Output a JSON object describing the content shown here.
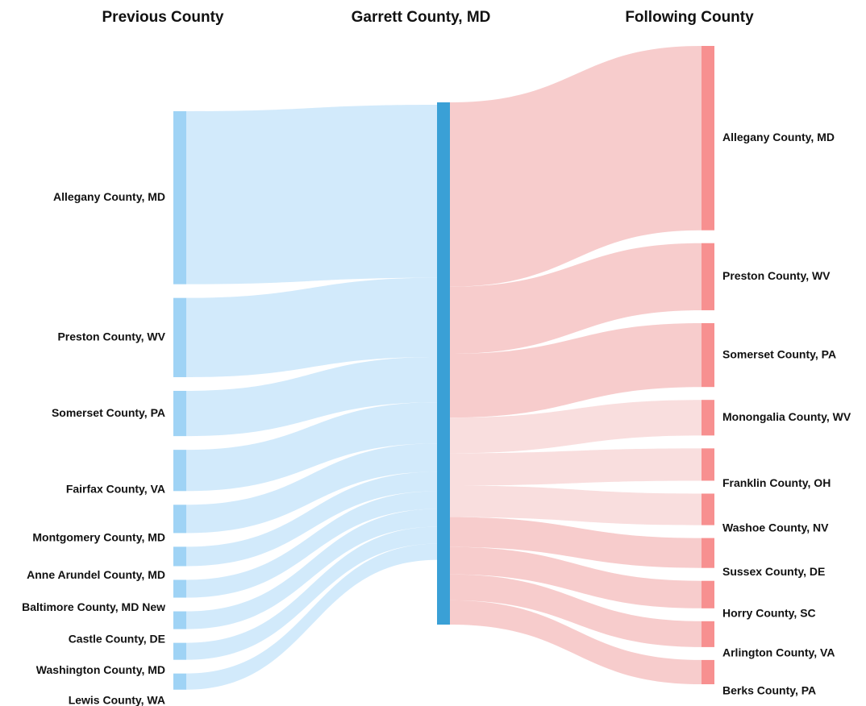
{
  "chart_data": {
    "type": "sankey",
    "headers": [
      "Previous County",
      "Garrett County, MD",
      "Following County"
    ],
    "center": {
      "name": "Garrett County, MD",
      "color": "#3aa0d6"
    },
    "sources": {
      "node_color": "#9fd3f5",
      "flow_color": "#d0e9fb",
      "names": [
        "Allegany County, MD",
        "Preston County, WV",
        "Somerset County, PA",
        "Fairfax County, VA",
        "Montgomery County, MD",
        "Anne Arundel County, MD",
        "Baltimore County, MD New",
        "Castle County, DE",
        "Washington County, MD",
        "Lewis County, WA"
      ],
      "values": [
        214,
        98,
        56,
        51,
        35,
        24,
        22,
        22,
        21,
        20
      ]
    },
    "targets": {
      "node_color": "#f79090",
      "names": [
        "Allegany County, MD",
        "Preston County, WV",
        "Somerset County, PA",
        "Monongalia County, WV",
        "Franklin County, OH",
        "Washoe County, NV",
        "Sussex County, DE",
        "Horry County, SC",
        "Arlington County, VA",
        "Berks County, PA"
      ],
      "values": [
        228,
        83,
        79,
        44,
        40,
        39,
        37,
        34,
        32,
        30
      ],
      "flow_colors": [
        "#f7c9c9",
        "#f7c9c9",
        "#f7c9c9",
        "#f9dcdc",
        "#f9dcdc",
        "#f9dcdc",
        "#f7c9c9",
        "#f7c9c9",
        "#f7c9c9",
        "#f7c9c9"
      ]
    }
  }
}
